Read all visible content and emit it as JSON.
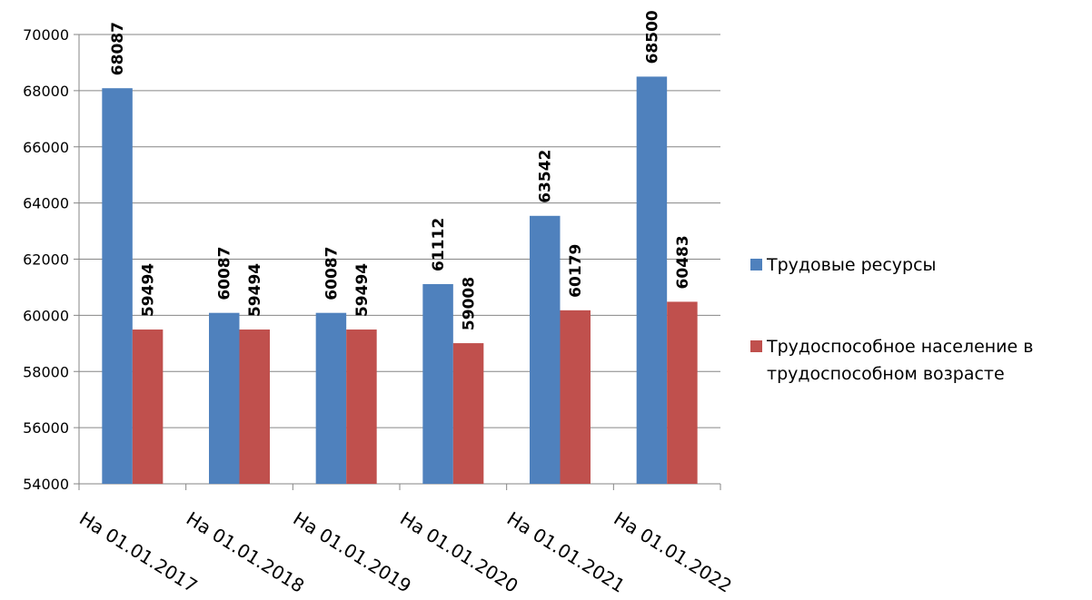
{
  "chart_data": {
    "type": "bar",
    "categories": [
      "На 01.01.2017",
      "На 01.01.2018",
      "На 01.01.2019",
      "На 01.01.2020",
      "На 01.01.2021",
      "На 01.01.2022"
    ],
    "series": [
      {
        "name": "Трудовые ресурсы",
        "color": "#4f81bd",
        "values": [
          68087,
          60087,
          60087,
          61112,
          63542,
          68500
        ]
      },
      {
        "name": "Трудоспособное население в трудоспособном возрасте",
        "legend_lines": [
          "Трудоспособное население в",
          "трудоспособном возрасте"
        ],
        "color": "#c0504d",
        "values": [
          59494,
          59494,
          59494,
          59008,
          60179,
          60483
        ]
      }
    ],
    "ylim": [
      54000,
      70000
    ],
    "yticks": [
      54000,
      56000,
      58000,
      60000,
      62000,
      64000,
      66000,
      68000,
      70000
    ],
    "grid": true,
    "legend_position": "right",
    "data_labels": true,
    "title": "",
    "xlabel": "",
    "ylabel": ""
  }
}
